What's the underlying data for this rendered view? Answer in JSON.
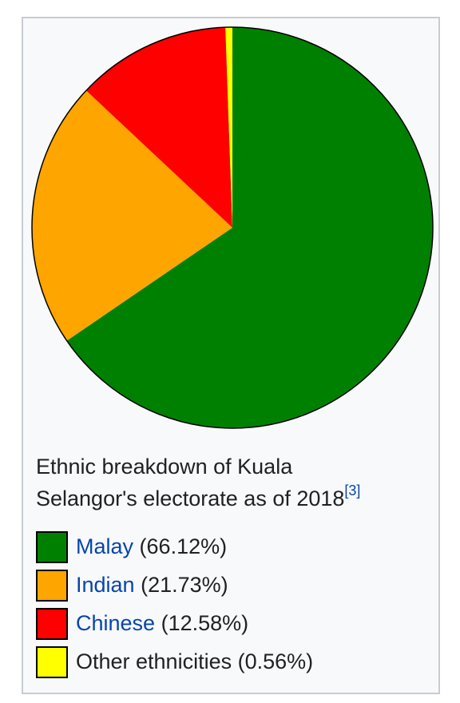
{
  "chart_data": {
    "type": "pie",
    "title": "Ethnic breakdown of Kuala Selangor's electorate as of 2018",
    "citation": "[3]",
    "slices": [
      {
        "name": "Malay",
        "value": 66.12,
        "label": "(66.12%)",
        "color": "#008000",
        "linked": true
      },
      {
        "name": "Indian",
        "value": 21.73,
        "label": "(21.73%)",
        "color": "#ffa500",
        "linked": true
      },
      {
        "name": "Chinese",
        "value": 12.58,
        "label": "(12.58%)",
        "color": "#ff0000",
        "linked": true
      },
      {
        "name": "Other ethnicities",
        "value": 0.56,
        "label": "(0.56%)",
        "color": "#ffff00",
        "linked": false
      }
    ]
  },
  "caption": {
    "line1": "Ethnic breakdown of Kuala",
    "line2": "Selangor's electorate as of 2018",
    "citation": "[3]"
  }
}
